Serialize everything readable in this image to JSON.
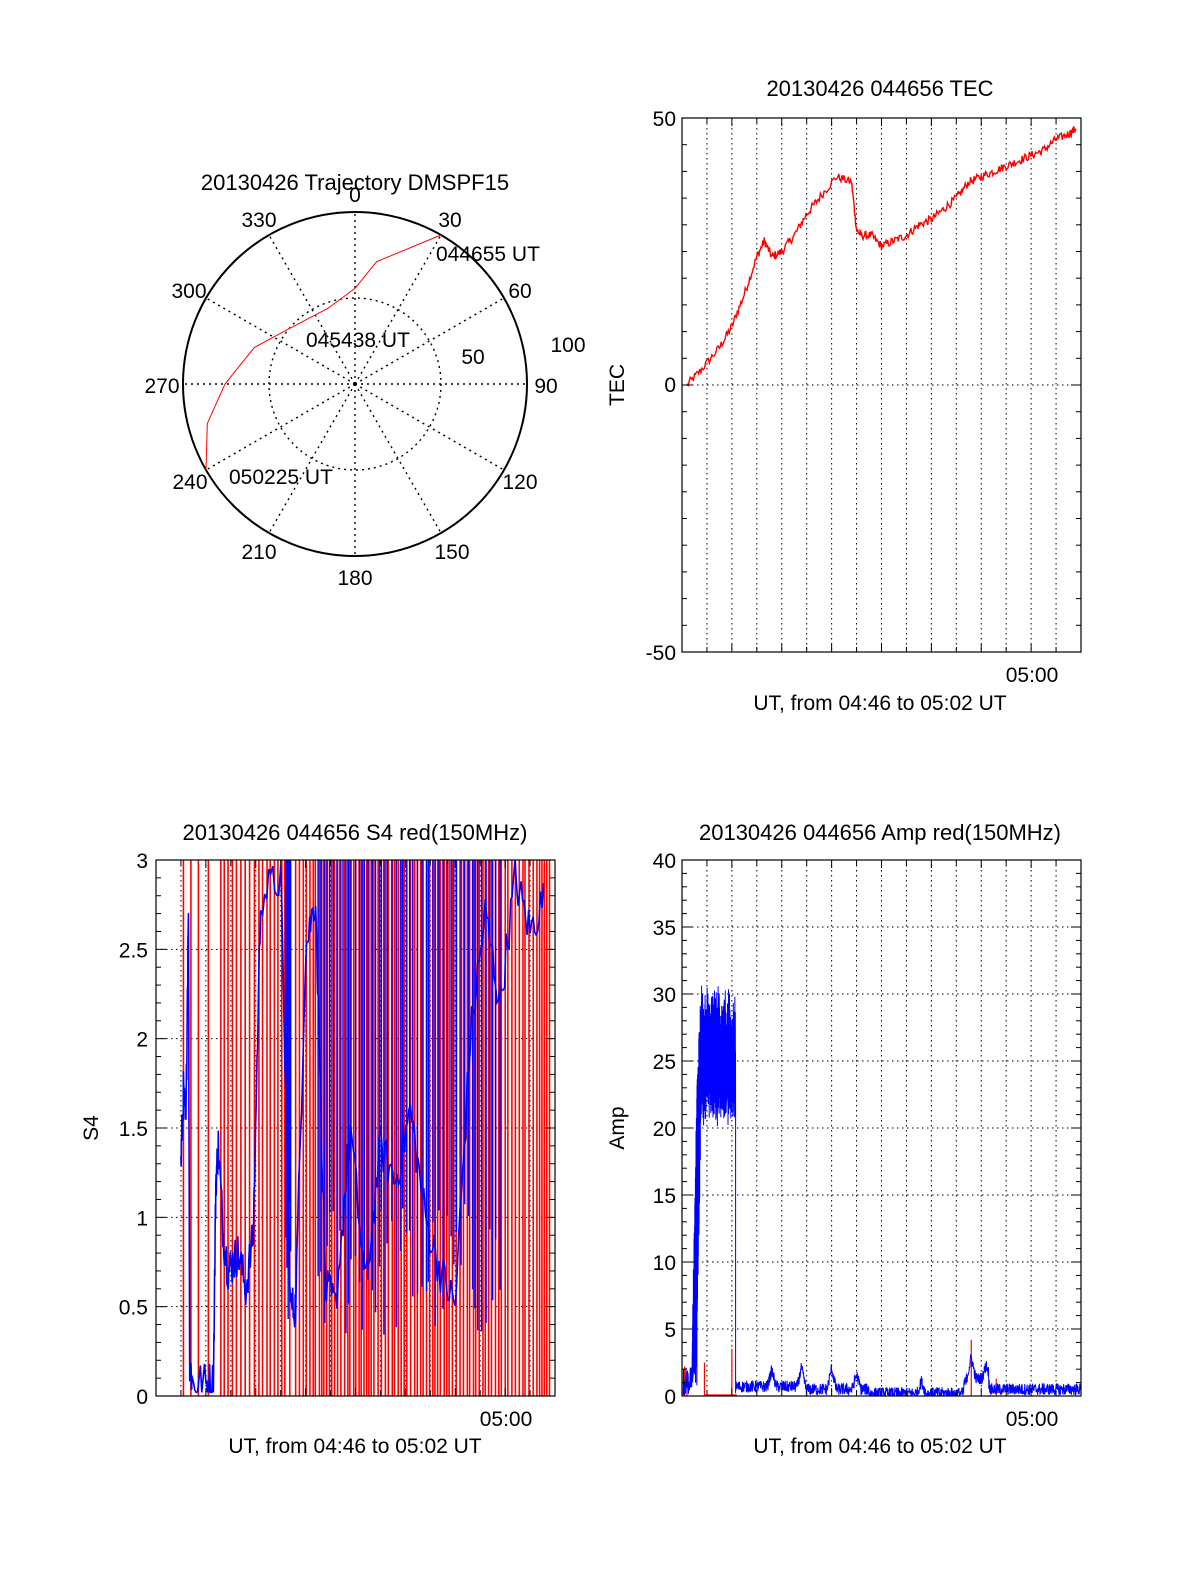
{
  "colors": {
    "red": "#ff0000",
    "blue": "#0000ff",
    "axis": "#000000",
    "grid": "#000000"
  },
  "chart_data": [
    {
      "type": "polar-trajectory",
      "title": "20130426 Trajectory DMSPF15",
      "azimuth_labels": [
        "0",
        "30",
        "60",
        "90",
        "120",
        "150",
        "180",
        "210",
        "240",
        "270",
        "300",
        "330"
      ],
      "radial_labels": [
        "50",
        "100"
      ],
      "points": [
        {
          "label": "044655 UT",
          "azimuth": 30,
          "zenith": 90
        },
        {
          "label": "045438 UT",
          "azimuth": 350,
          "zenith": 45
        },
        {
          "label": "050225 UT",
          "azimuth": 240,
          "zenith": 90
        }
      ],
      "track": [
        [
          30,
          90
        ],
        [
          10,
          65
        ],
        [
          0,
          50
        ],
        [
          340,
          42
        ],
        [
          310,
          45
        ],
        [
          290,
          56
        ],
        [
          270,
          68
        ],
        [
          255,
          80
        ],
        [
          240,
          90
        ]
      ]
    },
    {
      "type": "line",
      "title": "20130426 044656 TEC",
      "ylabel": "TEC",
      "xlabel": "UT, from 04:46 to 05:02 UT",
      "ylim": [
        -50,
        50
      ],
      "yticks": [
        "50",
        "0",
        "-50"
      ],
      "xlim_min": [
        0,
        16
      ],
      "xticks": [
        {
          "label": "05:00",
          "x": 14
        }
      ],
      "series": [
        {
          "color": "red",
          "x": [
            0.2,
            0.8,
            1.5,
            2.0,
            2.5,
            3.0,
            3.3,
            3.6,
            4.0,
            4.5,
            5.0,
            5.5,
            6.2,
            6.8,
            7.0,
            7.2,
            7.6,
            8.0,
            8.5,
            9.0,
            9.5,
            10.0,
            10.5,
            11.0,
            11.5,
            12.0,
            12.5,
            13.0,
            13.5,
            14.0,
            14.5,
            15.0,
            15.5,
            15.8
          ],
          "y": [
            0,
            3,
            7,
            11,
            17,
            24,
            27,
            24,
            25,
            28,
            32,
            35,
            39,
            38,
            29,
            28,
            28,
            26,
            27,
            28,
            30,
            31,
            33,
            35,
            38,
            39,
            40,
            41,
            42,
            43,
            44,
            46,
            47,
            48
          ]
        }
      ]
    },
    {
      "type": "line",
      "title": "20130426 044656 S4 red(150MHz)",
      "ylabel": "S4",
      "xlabel": "UT, from 04:46 to 05:02 UT",
      "ylim": [
        0,
        3
      ],
      "yticks": [
        "0",
        "0.5",
        "1",
        "1.5",
        "2",
        "2.5",
        "3"
      ],
      "xlim_min": [
        0,
        16
      ],
      "xticks": [
        {
          "label": "05:00",
          "x": 14
        }
      ]
    },
    {
      "type": "line",
      "title": "20130426 044656 Amp red(150MHz)",
      "ylabel": "Amp",
      "xlabel": "UT, from 04:46 to 05:02 UT",
      "ylim": [
        0,
        40
      ],
      "yticks": [
        "0",
        "5",
        "10",
        "15",
        "20",
        "25",
        "30",
        "35",
        "40"
      ],
      "xlim_min": [
        0,
        16
      ],
      "xticks": [
        {
          "label": "05:00",
          "x": 14
        }
      ]
    }
  ]
}
